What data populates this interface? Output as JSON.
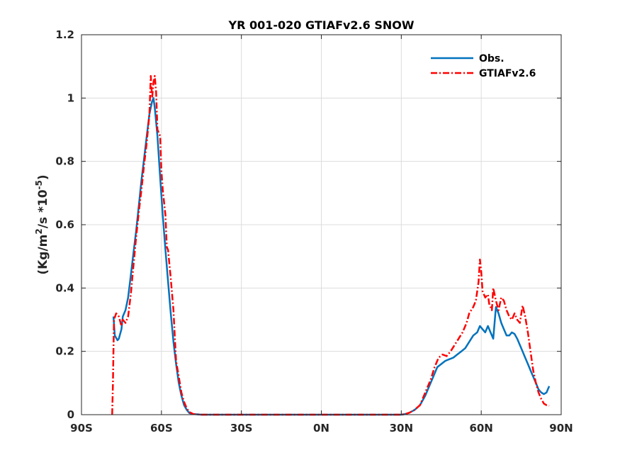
{
  "chart_data": {
    "type": "line",
    "title": "YR 001-020 GTIAFv2.6 SNOW",
    "ylabel": "(Kg/m² /s *10⁻⁵)",
    "ylabel_parts": {
      "base": "(Kg/m",
      "sq": "2",
      "mid": "/s *10",
      "exp": "-5",
      "end": ")"
    },
    "xlabel": "",
    "xlim": [
      -90,
      90
    ],
    "ylim": [
      0,
      1.2
    ],
    "grid": true,
    "legend_position": "top-right",
    "x_ticks": [
      {
        "value": -90,
        "label": "90S"
      },
      {
        "value": -60,
        "label": "60S"
      },
      {
        "value": -30,
        "label": "30S"
      },
      {
        "value": 0,
        "label": "0N"
      },
      {
        "value": 30,
        "label": "30N"
      },
      {
        "value": 60,
        "label": "60N"
      },
      {
        "value": 90,
        "label": "90N"
      }
    ],
    "y_ticks": [
      {
        "value": 0,
        "label": "0"
      },
      {
        "value": 0.2,
        "label": "0.2"
      },
      {
        "value": 0.4,
        "label": "0.4"
      },
      {
        "value": 0.6,
        "label": "0.6"
      },
      {
        "value": 0.8,
        "label": "0.8"
      },
      {
        "value": 1,
        "label": "1"
      },
      {
        "value": 1.2,
        "label": "1.2"
      }
    ],
    "series": [
      {
        "name": "Obs.",
        "color": "#0072BD",
        "style": "solid",
        "points": [
          [
            -78,
            0.31
          ],
          [
            -77.5,
            0.25
          ],
          [
            -76.5,
            0.235
          ],
          [
            -76,
            0.24
          ],
          [
            -75,
            0.27
          ],
          [
            -74.5,
            0.31
          ],
          [
            -73.5,
            0.33
          ],
          [
            -72.5,
            0.37
          ],
          [
            -71.5,
            0.44
          ],
          [
            -70.5,
            0.51
          ],
          [
            -69.5,
            0.58
          ],
          [
            -68.5,
            0.66
          ],
          [
            -67.5,
            0.74
          ],
          [
            -66.5,
            0.81
          ],
          [
            -65.5,
            0.88
          ],
          [
            -64.5,
            0.95
          ],
          [
            -63.5,
            0.99
          ],
          [
            -63,
            1.0
          ],
          [
            -62.5,
            0.97
          ],
          [
            -61.5,
            0.88
          ],
          [
            -60.5,
            0.75
          ],
          [
            -59.5,
            0.63
          ],
          [
            -58.5,
            0.52
          ],
          [
            -57.5,
            0.42
          ],
          [
            -56.5,
            0.32
          ],
          [
            -55.5,
            0.23
          ],
          [
            -54.5,
            0.16
          ],
          [
            -53.5,
            0.1
          ],
          [
            -52.5,
            0.06
          ],
          [
            -51.5,
            0.03
          ],
          [
            -50.5,
            0.015
          ],
          [
            -49.5,
            0.005
          ],
          [
            -48,
            0.002
          ],
          [
            -45,
            0
          ],
          [
            0,
            0
          ],
          [
            30,
            0
          ],
          [
            31.5,
            0.002
          ],
          [
            33,
            0.006
          ],
          [
            35,
            0.015
          ],
          [
            37,
            0.03
          ],
          [
            39,
            0.06
          ],
          [
            40.5,
            0.09
          ],
          [
            42,
            0.12
          ],
          [
            43.5,
            0.15
          ],
          [
            45,
            0.16
          ],
          [
            46.5,
            0.17
          ],
          [
            48,
            0.175
          ],
          [
            49.5,
            0.18
          ],
          [
            51,
            0.19
          ],
          [
            52.5,
            0.2
          ],
          [
            54,
            0.21
          ],
          [
            55.5,
            0.23
          ],
          [
            57,
            0.25
          ],
          [
            58.5,
            0.26
          ],
          [
            59.5,
            0.28
          ],
          [
            60.5,
            0.27
          ],
          [
            61.5,
            0.26
          ],
          [
            62.5,
            0.28
          ],
          [
            63.5,
            0.26
          ],
          [
            64.5,
            0.24
          ],
          [
            65.5,
            0.34
          ],
          [
            66.5,
            0.32
          ],
          [
            67.5,
            0.29
          ],
          [
            68.5,
            0.27
          ],
          [
            69.5,
            0.25
          ],
          [
            70.5,
            0.25
          ],
          [
            71.5,
            0.26
          ],
          [
            72.5,
            0.255
          ],
          [
            73.5,
            0.24
          ],
          [
            74.5,
            0.22
          ],
          [
            75.5,
            0.2
          ],
          [
            76.5,
            0.18
          ],
          [
            77.5,
            0.16
          ],
          [
            78.5,
            0.14
          ],
          [
            79.5,
            0.12
          ],
          [
            80.5,
            0.1
          ],
          [
            81.5,
            0.08
          ],
          [
            82.5,
            0.07
          ],
          [
            83.5,
            0.065
          ],
          [
            84.5,
            0.07
          ],
          [
            85.5,
            0.09
          ]
        ]
      },
      {
        "name": "GTIAFv2.6",
        "color": "#FF0000",
        "style": "dashdot",
        "points": [
          [
            -78.5,
            0
          ],
          [
            -78.2,
            0.1
          ],
          [
            -78,
            0.2
          ],
          [
            -77.8,
            0.3
          ],
          [
            -77,
            0.32
          ],
          [
            -76,
            0.31
          ],
          [
            -75,
            0.28
          ],
          [
            -74.5,
            0.3
          ],
          [
            -73.5,
            0.29
          ],
          [
            -72.5,
            0.31
          ],
          [
            -71.5,
            0.38
          ],
          [
            -70.5,
            0.47
          ],
          [
            -69.5,
            0.56
          ],
          [
            -68.5,
            0.64
          ],
          [
            -67.5,
            0.71
          ],
          [
            -66.5,
            0.79
          ],
          [
            -65.5,
            0.86
          ],
          [
            -64.5,
            0.95
          ],
          [
            -64,
            1.07
          ],
          [
            -63.5,
            1.0
          ],
          [
            -63,
            1.05
          ],
          [
            -62.5,
            1.07
          ],
          [
            -62,
            1.02
          ],
          [
            -61.5,
            0.9
          ],
          [
            -60.5,
            0.88
          ],
          [
            -60,
            0.77
          ],
          [
            -59.5,
            0.71
          ],
          [
            -58.5,
            0.63
          ],
          [
            -58,
            0.53
          ],
          [
            -57.5,
            0.52
          ],
          [
            -56.5,
            0.43
          ],
          [
            -55.5,
            0.33
          ],
          [
            -55,
            0.25
          ],
          [
            -54.5,
            0.17
          ],
          [
            -53.5,
            0.12
          ],
          [
            -52.5,
            0.07
          ],
          [
            -51.5,
            0.04
          ],
          [
            -50.5,
            0.02
          ],
          [
            -49.5,
            0.008
          ],
          [
            -48,
            0.002
          ],
          [
            -45,
            0
          ],
          [
            0,
            0
          ],
          [
            30,
            0
          ],
          [
            31.5,
            0.002
          ],
          [
            33,
            0.006
          ],
          [
            35,
            0.015
          ],
          [
            37,
            0.03
          ],
          [
            39,
            0.07
          ],
          [
            41,
            0.11
          ],
          [
            42.5,
            0.15
          ],
          [
            44,
            0.18
          ],
          [
            45.5,
            0.19
          ],
          [
            47,
            0.185
          ],
          [
            48.5,
            0.2
          ],
          [
            50,
            0.22
          ],
          [
            51.5,
            0.24
          ],
          [
            53,
            0.26
          ],
          [
            54.5,
            0.29
          ],
          [
            55.5,
            0.32
          ],
          [
            57,
            0.34
          ],
          [
            58,
            0.36
          ],
          [
            59,
            0.42
          ],
          [
            59.5,
            0.49
          ],
          [
            60,
            0.45
          ],
          [
            60.5,
            0.39
          ],
          [
            61.5,
            0.37
          ],
          [
            62.5,
            0.38
          ],
          [
            63,
            0.35
          ],
          [
            64,
            0.33
          ],
          [
            64.5,
            0.4
          ],
          [
            65.5,
            0.36
          ],
          [
            66.5,
            0.33
          ],
          [
            67.5,
            0.37
          ],
          [
            68.5,
            0.36
          ],
          [
            69.5,
            0.33
          ],
          [
            70.5,
            0.31
          ],
          [
            71.5,
            0.3
          ],
          [
            72.5,
            0.32
          ],
          [
            73.5,
            0.3
          ],
          [
            74.5,
            0.29
          ],
          [
            75.5,
            0.345
          ],
          [
            76.5,
            0.31
          ],
          [
            77.5,
            0.26
          ],
          [
            78.5,
            0.2
          ],
          [
            79.5,
            0.14
          ],
          [
            80.5,
            0.1
          ],
          [
            81.5,
            0.07
          ],
          [
            82.5,
            0.05
          ],
          [
            83.5,
            0.035
          ],
          [
            84.5,
            0.03
          ],
          [
            85.5,
            0.028
          ]
        ]
      }
    ]
  }
}
